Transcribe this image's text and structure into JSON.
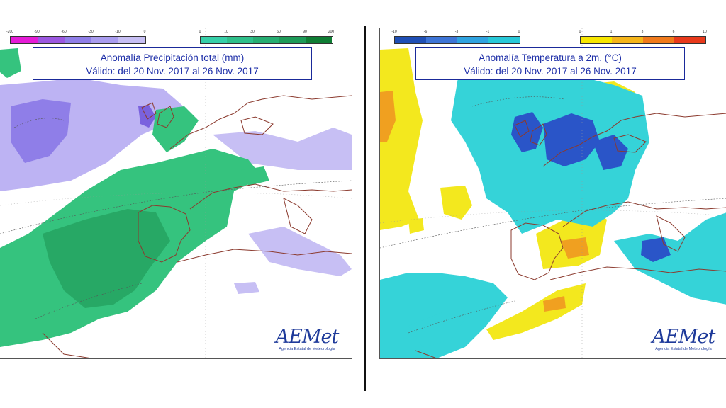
{
  "left_map": {
    "title_line1": "Anomalía Precipitación total (mm)",
    "title_line2": "Válido: del 20 Nov. 2017 al 26 Nov. 2017",
    "legend_negative": {
      "ticks": [
        "-200",
        "-90",
        "-60",
        "-30",
        "-10",
        "0"
      ],
      "colors": [
        "#e51bd6",
        "#9b57e0",
        "#8f7ee8",
        "#a99cef",
        "#c7bff4"
      ]
    },
    "legend_positive": {
      "ticks": [
        "0",
        "10",
        "30",
        "60",
        "90",
        "200"
      ],
      "colors": [
        "#36cfa8",
        "#2ebf8a",
        "#26ad72",
        "#1d9a58",
        "#0f7d34"
      ]
    },
    "colors": {
      "wet": "#2ebd74",
      "wet_dark": "#1f9d5a",
      "dry": "#a89ff0",
      "dry_dark": "#7a62de",
      "coast": "#8b3a2e"
    }
  },
  "right_map": {
    "title_line1": "Anomalía Temperatura a 2m. (°C)",
    "title_line2": "Válido: del 20 Nov. 2017 al 26 Nov. 2017",
    "legend_negative": {
      "ticks": [
        "-10",
        "-6",
        "-3",
        "-1",
        "0"
      ],
      "colors": [
        "#1f4fb5",
        "#3d74d6",
        "#2fa3e0",
        "#27c8d8"
      ]
    },
    "legend_positive": {
      "ticks": [
        "0",
        "1",
        "3",
        "6",
        "10"
      ],
      "colors": [
        "#f7e600",
        "#f5b51a",
        "#f07a1c",
        "#e8391b"
      ]
    },
    "colors": {
      "cold": "#35d3d8",
      "cold_dark": "#2a55c8",
      "warm": "#f3e81e",
      "warm_dark": "#f0a020",
      "coast": "#8b3a2e"
    }
  },
  "logo": {
    "name": "AEMet",
    "subtitle": "Agencia Estatal de Meteorología"
  }
}
